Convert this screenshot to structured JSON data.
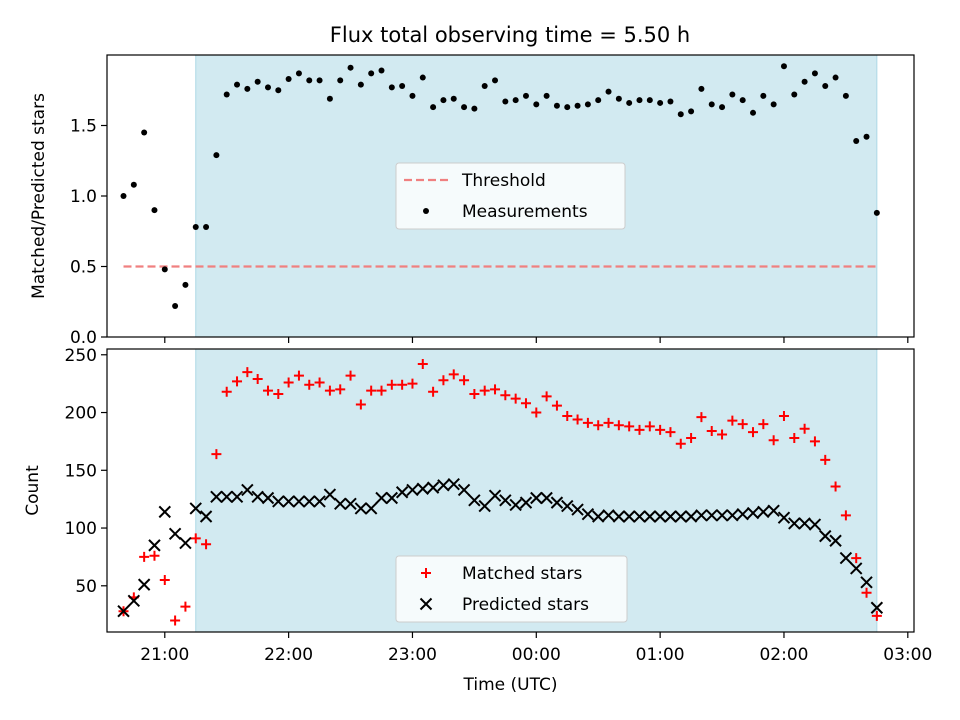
{
  "chart_data": [
    {
      "type": "scatter",
      "title": "Flux total observing time = 5.50 h",
      "xlabel": "",
      "ylabel": "Matched/Predicted stars",
      "xlim": [
        "20:32",
        "03:03"
      ],
      "ylim": [
        0,
        2.0
      ],
      "yticks": [
        0.0,
        0.5,
        1.0,
        1.5
      ],
      "ytick_labels": [
        "0.0",
        "0.5",
        "1.0",
        "1.5"
      ],
      "xticks": [
        "21:00",
        "22:00",
        "23:00",
        "00:00",
        "01:00",
        "02:00",
        "03:00"
      ],
      "shaded_span": [
        "21:15",
        "02:45"
      ],
      "shade_color": "#add8e6",
      "legend": {
        "placement": "center",
        "entries": [
          {
            "label": "Threshold",
            "style": "dashed-line",
            "color": "#f08080"
          },
          {
            "label": "Measurements",
            "style": "dot",
            "color": "#000000"
          }
        ]
      },
      "series": [
        {
          "name": "Threshold",
          "kind": "hline",
          "color": "#f08080",
          "x": [
            "20:40",
            "02:45"
          ],
          "y": [
            0.5,
            0.5
          ]
        },
        {
          "name": "Measurements",
          "kind": "scatter",
          "color": "#000000",
          "x": [
            "20:40",
            "20:45",
            "20:50",
            "20:55",
            "21:00",
            "21:05",
            "21:10",
            "21:15",
            "21:20",
            "21:25",
            "21:30",
            "21:35",
            "21:40",
            "21:45",
            "21:50",
            "21:55",
            "22:00",
            "22:05",
            "22:10",
            "22:15",
            "22:20",
            "22:25",
            "22:30",
            "22:35",
            "22:40",
            "22:45",
            "22:50",
            "22:55",
            "23:00",
            "23:05",
            "23:10",
            "23:15",
            "23:20",
            "23:25",
            "23:30",
            "23:35",
            "23:40",
            "23:45",
            "23:50",
            "23:55",
            "00:00",
            "00:05",
            "00:10",
            "00:15",
            "00:20",
            "00:25",
            "00:30",
            "00:35",
            "00:40",
            "00:45",
            "00:50",
            "00:55",
            "01:00",
            "01:05",
            "01:10",
            "01:15",
            "01:20",
            "01:25",
            "01:30",
            "01:35",
            "01:40",
            "01:45",
            "01:50",
            "01:55",
            "02:00",
            "02:05",
            "02:10",
            "02:15",
            "02:20",
            "02:25",
            "02:30",
            "02:35",
            "02:40",
            "02:45"
          ],
          "y": [
            1.0,
            1.08,
            1.45,
            0.9,
            0.48,
            0.22,
            0.37,
            0.78,
            0.78,
            1.29,
            1.72,
            1.79,
            1.76,
            1.81,
            1.77,
            1.75,
            1.83,
            1.87,
            1.82,
            1.82,
            1.69,
            1.82,
            1.91,
            1.79,
            1.87,
            1.89,
            1.77,
            1.78,
            1.71,
            1.84,
            1.63,
            1.68,
            1.69,
            1.63,
            1.62,
            1.78,
            1.82,
            1.67,
            1.68,
            1.71,
            1.65,
            1.71,
            1.64,
            1.63,
            1.64,
            1.65,
            1.68,
            1.74,
            1.69,
            1.66,
            1.68,
            1.68,
            1.66,
            1.67,
            1.58,
            1.6,
            1.76,
            1.65,
            1.63,
            1.72,
            1.68,
            1.59,
            1.71,
            1.65,
            1.92,
            1.72,
            1.81,
            1.87,
            1.78,
            1.84,
            1.71,
            1.39,
            1.42,
            0.88
          ]
        }
      ]
    },
    {
      "type": "scatter",
      "title": "",
      "xlabel": "Time (UTC)",
      "ylabel": "Count",
      "xlim": [
        "20:32",
        "03:03"
      ],
      "ylim": [
        10,
        255
      ],
      "yticks": [
        50,
        100,
        150,
        200,
        250
      ],
      "ytick_labels": [
        "50",
        "100",
        "150",
        "200",
        "250"
      ],
      "xticks": [
        "21:00",
        "22:00",
        "23:00",
        "00:00",
        "01:00",
        "02:00",
        "03:00"
      ],
      "xtick_labels": [
        "21:00",
        "22:00",
        "23:00",
        "00:00",
        "01:00",
        "02:00",
        "03:00"
      ],
      "shaded_span": [
        "21:15",
        "02:45"
      ],
      "shade_color": "#add8e6",
      "legend": {
        "placement": "lower center",
        "entries": [
          {
            "label": "Matched stars",
            "style": "plus",
            "color": "#ff0000"
          },
          {
            "label": "Predicted stars",
            "style": "x",
            "color": "#000000"
          }
        ]
      },
      "series": [
        {
          "name": "Matched stars",
          "kind": "plus",
          "color": "#ff0000",
          "x": [
            "20:40",
            "20:45",
            "20:50",
            "20:55",
            "21:00",
            "21:05",
            "21:10",
            "21:15",
            "21:20",
            "21:25",
            "21:30",
            "21:35",
            "21:40",
            "21:45",
            "21:50",
            "21:55",
            "22:00",
            "22:05",
            "22:10",
            "22:15",
            "22:20",
            "22:25",
            "22:30",
            "22:35",
            "22:40",
            "22:45",
            "22:50",
            "22:55",
            "23:00",
            "23:05",
            "23:10",
            "23:15",
            "23:20",
            "23:25",
            "23:30",
            "23:35",
            "23:40",
            "23:45",
            "23:50",
            "23:55",
            "00:00",
            "00:05",
            "00:10",
            "00:15",
            "00:20",
            "00:25",
            "00:30",
            "00:35",
            "00:40",
            "00:45",
            "00:50",
            "00:55",
            "01:00",
            "01:05",
            "01:10",
            "01:15",
            "01:20",
            "01:25",
            "01:30",
            "01:35",
            "01:40",
            "01:45",
            "01:50",
            "01:55",
            "02:00",
            "02:05",
            "02:10",
            "02:15",
            "02:20",
            "02:25",
            "02:30",
            "02:35",
            "02:40",
            "02:45"
          ],
          "y": [
            28,
            40,
            75,
            76,
            55,
            20,
            32,
            91,
            86,
            164,
            218,
            227,
            235,
            229,
            219,
            216,
            226,
            232,
            224,
            226,
            219,
            220,
            232,
            207,
            219,
            219,
            224,
            224,
            225,
            242,
            218,
            228,
            233,
            228,
            216,
            219,
            220,
            215,
            212,
            208,
            200,
            214,
            206,
            197,
            194,
            191,
            189,
            191,
            189,
            188,
            185,
            188,
            185,
            183,
            173,
            178,
            196,
            184,
            181,
            193,
            190,
            183,
            190,
            176,
            197,
            178,
            186,
            175,
            159,
            136,
            111,
            74,
            44,
            24
          ]
        },
        {
          "name": "Predicted stars",
          "kind": "x",
          "color": "#000000",
          "x": [
            "20:40",
            "20:45",
            "20:50",
            "20:55",
            "21:00",
            "21:05",
            "21:10",
            "21:15",
            "21:20",
            "21:25",
            "21:30",
            "21:35",
            "21:40",
            "21:45",
            "21:50",
            "21:55",
            "22:00",
            "22:05",
            "22:10",
            "22:15",
            "22:20",
            "22:25",
            "22:30",
            "22:35",
            "22:40",
            "22:45",
            "22:50",
            "22:55",
            "23:00",
            "23:05",
            "23:10",
            "23:15",
            "23:20",
            "23:25",
            "23:30",
            "23:35",
            "23:40",
            "23:45",
            "23:50",
            "23:55",
            "00:00",
            "00:05",
            "00:10",
            "00:15",
            "00:20",
            "00:25",
            "00:30",
            "00:35",
            "00:40",
            "00:45",
            "00:50",
            "00:55",
            "01:00",
            "01:05",
            "01:10",
            "01:15",
            "01:20",
            "01:25",
            "01:30",
            "01:35",
            "01:40",
            "01:45",
            "01:50",
            "01:55",
            "02:00",
            "02:05",
            "02:10",
            "02:15",
            "02:20",
            "02:25",
            "02:30",
            "02:35",
            "02:40",
            "02:45"
          ],
          "y": [
            28,
            37,
            51,
            85,
            114,
            95,
            87,
            117,
            110,
            127,
            127,
            127,
            133,
            127,
            126,
            123,
            123,
            123,
            123,
            123,
            129,
            121,
            121,
            117,
            117,
            126,
            126,
            131,
            133,
            134,
            135,
            137,
            138,
            133,
            124,
            119,
            128,
            124,
            120,
            122,
            126,
            126,
            122,
            119,
            116,
            112,
            110,
            111,
            110,
            110,
            110,
            110,
            110,
            110,
            110,
            110,
            111,
            111,
            111,
            111,
            112,
            113,
            114,
            115,
            109,
            104,
            104,
            103,
            93,
            89,
            74,
            65,
            53,
            31
          ]
        }
      ]
    }
  ]
}
